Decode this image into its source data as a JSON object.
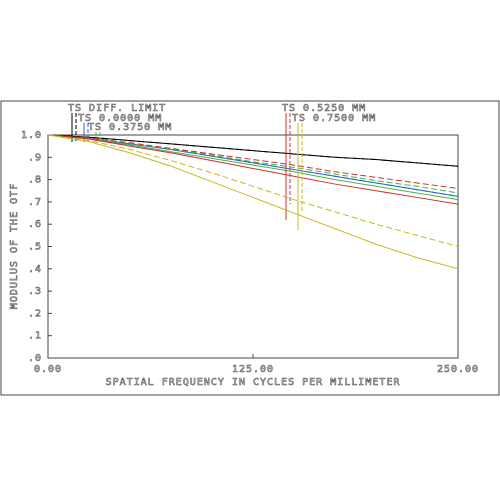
{
  "chart_data": {
    "type": "line",
    "x_label": "SPATIAL FREQUENCY IN CYCLES PER MILLIMETER",
    "y_label": "MODULUS OF THE OTF",
    "x": [
      0,
      25,
      50,
      75,
      100,
      125,
      150,
      175,
      200,
      225,
      250
    ],
    "xlim": [
      0,
      250
    ],
    "xticks": [
      {
        "value": 0,
        "label": "0.00"
      },
      {
        "value": 125,
        "label": "125.00"
      },
      {
        "value": 250,
        "label": "250.00"
      }
    ],
    "ylim": [
      0,
      1
    ],
    "yticks": [
      {
        "value": 0,
        "label": ".0"
      },
      {
        "value": 0.1,
        "label": ".1"
      },
      {
        "value": 0.2,
        "label": ".2"
      },
      {
        "value": 0.3,
        "label": ".3"
      },
      {
        "value": 0.4,
        "label": ".4"
      },
      {
        "value": 0.5,
        "label": ".5"
      },
      {
        "value": 0.6,
        "label": ".6"
      },
      {
        "value": 0.7,
        "label": ".7"
      },
      {
        "value": 0.8,
        "label": ".8"
      },
      {
        "value": 0.9,
        "label": ".9"
      },
      {
        "value": 1,
        "label": "1.0"
      }
    ],
    "series": [
      {
        "name": "TS DIFF. LIMIT",
        "color": "#000000",
        "tangential": [
          1.0,
          0.99,
          0.975,
          0.96,
          0.945,
          0.93,
          0.915,
          0.9,
          0.89,
          0.875,
          0.86
        ],
        "sagittal": [
          1.0,
          0.99,
          0.975,
          0.96,
          0.945,
          0.93,
          0.915,
          0.9,
          0.89,
          0.875,
          0.86
        ]
      },
      {
        "name": "TS 0.0000 MM",
        "color": "#3060d0",
        "tangential": [
          1.0,
          0.985,
          0.96,
          0.935,
          0.905,
          0.875,
          0.845,
          0.815,
          0.785,
          0.755,
          0.725
        ],
        "sagittal": [
          1.0,
          0.985,
          0.96,
          0.935,
          0.905,
          0.875,
          0.845,
          0.815,
          0.785,
          0.755,
          0.725
        ]
      },
      {
        "name": "TS 0.3750 MM",
        "color": "#40b840",
        "tangential": [
          1.0,
          0.983,
          0.955,
          0.925,
          0.895,
          0.865,
          0.835,
          0.8,
          0.77,
          0.74,
          0.71
        ],
        "sagittal": [
          1.0,
          0.985,
          0.962,
          0.937,
          0.91,
          0.88,
          0.855,
          0.825,
          0.795,
          0.77,
          0.74
        ]
      },
      {
        "name": "TS 0.5250 MM",
        "color": "#d03030",
        "tangential": [
          1.0,
          0.982,
          0.95,
          0.92,
          0.885,
          0.85,
          0.815,
          0.78,
          0.75,
          0.72,
          0.69
        ],
        "sagittal": [
          1.0,
          0.987,
          0.965,
          0.94,
          0.915,
          0.89,
          0.865,
          0.835,
          0.81,
          0.785,
          0.76
        ]
      },
      {
        "name": "TS 0.7500 MM",
        "color": "#c8b820",
        "tangential": [
          1.0,
          0.97,
          0.92,
          0.86,
          0.79,
          0.72,
          0.65,
          0.58,
          0.51,
          0.45,
          0.4
        ],
        "sagittal": [
          1.0,
          0.975,
          0.935,
          0.885,
          0.83,
          0.77,
          0.71,
          0.655,
          0.6,
          0.55,
          0.5
        ]
      }
    ]
  }
}
